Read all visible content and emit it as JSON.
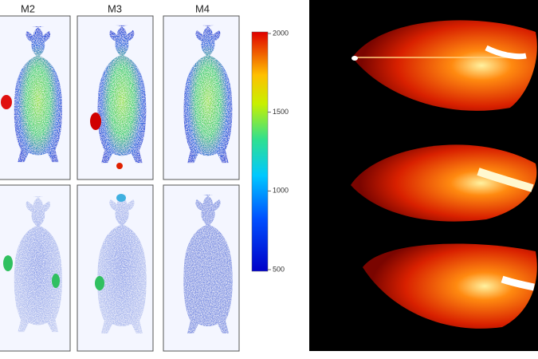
{
  "figure": {
    "panel_labels": [
      "M2",
      "M3",
      "M4"
    ],
    "colorbar": {
      "lim": [
        500,
        2000
      ],
      "ticks": [
        2000,
        1500,
        1000,
        500
      ]
    }
  }
}
